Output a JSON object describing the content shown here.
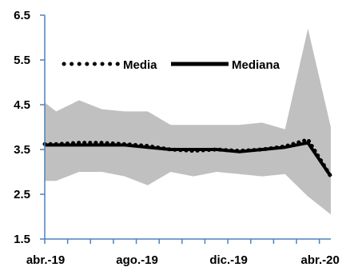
{
  "chart_data": {
    "type": "line",
    "title": "",
    "xlabel": "",
    "ylabel": "",
    "ylim": [
      1.5,
      6.5
    ],
    "yticks": [
      "1.5",
      "2.5",
      "3.5",
      "4.5",
      "5.5",
      "6.5"
    ],
    "xtick_labels": [
      {
        "x": 0,
        "label": "abr.-19"
      },
      {
        "x": 4,
        "label": "ago.-19"
      },
      {
        "x": 8,
        "label": "dic.-19"
      },
      {
        "x": 12,
        "label": "abr.-20"
      }
    ],
    "x": [
      0,
      0.5,
      1.5,
      2.5,
      3.5,
      4.5,
      5.5,
      6.5,
      7.5,
      8.5,
      9.5,
      10.5,
      11.5,
      12.5
    ],
    "band": {
      "upper": [
        4.55,
        4.35,
        4.6,
        4.4,
        4.35,
        4.35,
        4.05,
        4.05,
        4.05,
        4.05,
        4.1,
        3.95,
        6.2,
        4.0
      ],
      "lower": [
        2.8,
        2.8,
        3.0,
        3.0,
        2.9,
        2.7,
        3.0,
        2.9,
        3.0,
        2.95,
        2.9,
        2.95,
        2.45,
        2.05
      ],
      "color": "#c0c0c0"
    },
    "series": [
      {
        "name": "Media",
        "style": "dotted",
        "values": [
          3.62,
          3.62,
          3.65,
          3.65,
          3.62,
          3.58,
          3.5,
          3.47,
          3.5,
          3.47,
          3.5,
          3.57,
          3.72,
          2.9
        ]
      },
      {
        "name": "Mediana",
        "style": "solid",
        "values": [
          3.6,
          3.6,
          3.6,
          3.6,
          3.6,
          3.55,
          3.5,
          3.5,
          3.5,
          3.45,
          3.5,
          3.55,
          3.65,
          2.9
        ]
      }
    ],
    "legend": {
      "position": "top"
    },
    "colors": {
      "axis": "#4f81bd",
      "line": "#000000"
    },
    "grid": false
  }
}
